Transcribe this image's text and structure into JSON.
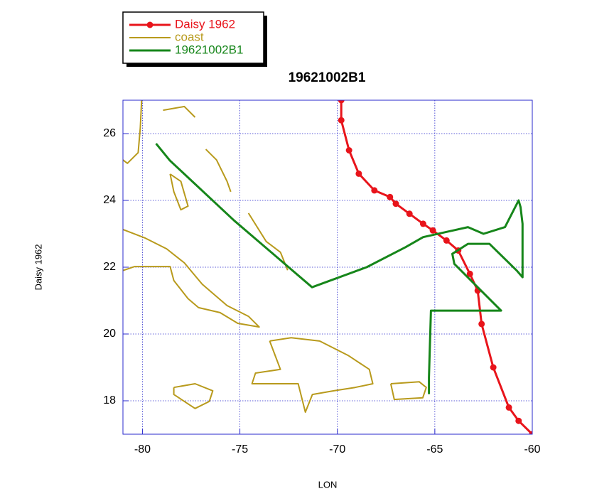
{
  "chart_data": {
    "type": "line",
    "title": "19621002B1",
    "xlabel": "LON",
    "ylabel": "Daisy 1962",
    "xlim": [
      -81,
      -60
    ],
    "ylim": [
      17,
      27
    ],
    "xticks": [
      -80,
      -75,
      -70,
      -65,
      -60
    ],
    "yticks": [
      18,
      20,
      22,
      24,
      26
    ],
    "grid": true,
    "legend": "top-left",
    "series": [
      {
        "name": "Daisy 1962",
        "color": "#e8141b",
        "markers": true,
        "x": [
          -69.8,
          -69.8,
          -69.4,
          -68.9,
          -68.1,
          -67.3,
          -67.0,
          -66.3,
          -65.6,
          -65.1,
          -64.4,
          -63.8,
          -63.2,
          -62.8,
          -62.6,
          -62.0,
          -61.2,
          -60.7,
          -60.0
        ],
        "values": [
          27.0,
          26.4,
          25.5,
          24.8,
          24.3,
          24.1,
          23.9,
          23.6,
          23.3,
          23.1,
          22.8,
          22.5,
          21.8,
          21.3,
          20.3,
          19.0,
          17.8,
          17.4,
          17.0
        ]
      },
      {
        "name": "coast",
        "color": "#b89a1c",
        "markers": false,
        "x": [
          -81.0,
          -79.85,
          -78.76,
          -77.85,
          -76.93,
          -75.66,
          -74.56,
          -74.01,
          -75.11,
          -76.02,
          -77.12,
          -77.66,
          -78.39,
          -78.58,
          -79.31,
          -80.4,
          -81.0,
          null,
          -73.47,
          -72.37,
          -70.91,
          -69.45,
          -68.36,
          -68.18,
          -69.09,
          -70.18,
          -71.28,
          -71.64,
          -72.01,
          -73.28,
          -74.38,
          -74.2,
          -72.92,
          -73.47,
          null,
          -67.26,
          -65.8,
          -65.44,
          -65.62,
          -67.08,
          -67.26,
          null,
          -78.39,
          -77.3,
          -76.39,
          -76.57,
          -77.3,
          -78.39,
          -78.39,
          null,
          -80.04,
          -80.11,
          -80.22,
          -80.77,
          -81.0,
          null,
          -78.58,
          -78.03,
          -77.66,
          -78.03,
          -78.39,
          -78.58,
          null,
          -78.94,
          -77.85,
          -77.3,
          null,
          -76.75,
          -76.2,
          -75.66,
          -75.47,
          null,
          -74.56,
          -73.65,
          -72.92,
          -72.55
        ],
        "values": [
          23.13,
          22.87,
          22.55,
          22.13,
          21.49,
          20.85,
          20.53,
          20.21,
          20.32,
          20.64,
          20.79,
          21.06,
          21.6,
          22.02,
          22.02,
          22.02,
          21.9,
          null,
          19.79,
          19.89,
          19.79,
          19.36,
          18.94,
          18.51,
          18.4,
          18.3,
          18.19,
          17.66,
          18.51,
          18.51,
          18.51,
          18.83,
          18.94,
          19.79,
          null,
          18.51,
          18.57,
          18.4,
          18.09,
          18.04,
          18.51,
          null,
          18.4,
          18.51,
          18.3,
          17.98,
          17.77,
          18.19,
          18.4,
          null,
          27.0,
          26.17,
          25.43,
          25.11,
          25.21,
          null,
          24.79,
          24.57,
          23.83,
          23.72,
          24.26,
          24.79,
          null,
          26.7,
          26.81,
          26.49,
          null,
          25.53,
          25.21,
          24.57,
          24.26,
          null,
          23.62,
          22.77,
          22.45,
          21.91
        ]
      },
      {
        "name": "19621002B1",
        "color": "#16861a",
        "markers": false,
        "x": [
          -79.3,
          -78.6,
          -75.3,
          -71.3,
          -68.5,
          -66.5,
          -65.6,
          -63.3,
          -62.5,
          -61.4,
          -60.7,
          -60.6,
          -60.5,
          -60.5,
          -60.8,
          -62.2,
          -63.3,
          -64.1,
          -64.0,
          -61.6,
          -65.2,
          -65.3,
          -65.3
        ],
        "values": [
          25.7,
          25.2,
          23.4,
          21.4,
          22.0,
          22.6,
          22.9,
          23.2,
          23.0,
          23.2,
          24.0,
          23.8,
          23.3,
          21.7,
          21.9,
          22.7,
          22.7,
          22.4,
          22.1,
          20.7,
          20.7,
          18.7,
          18.2
        ]
      }
    ]
  }
}
